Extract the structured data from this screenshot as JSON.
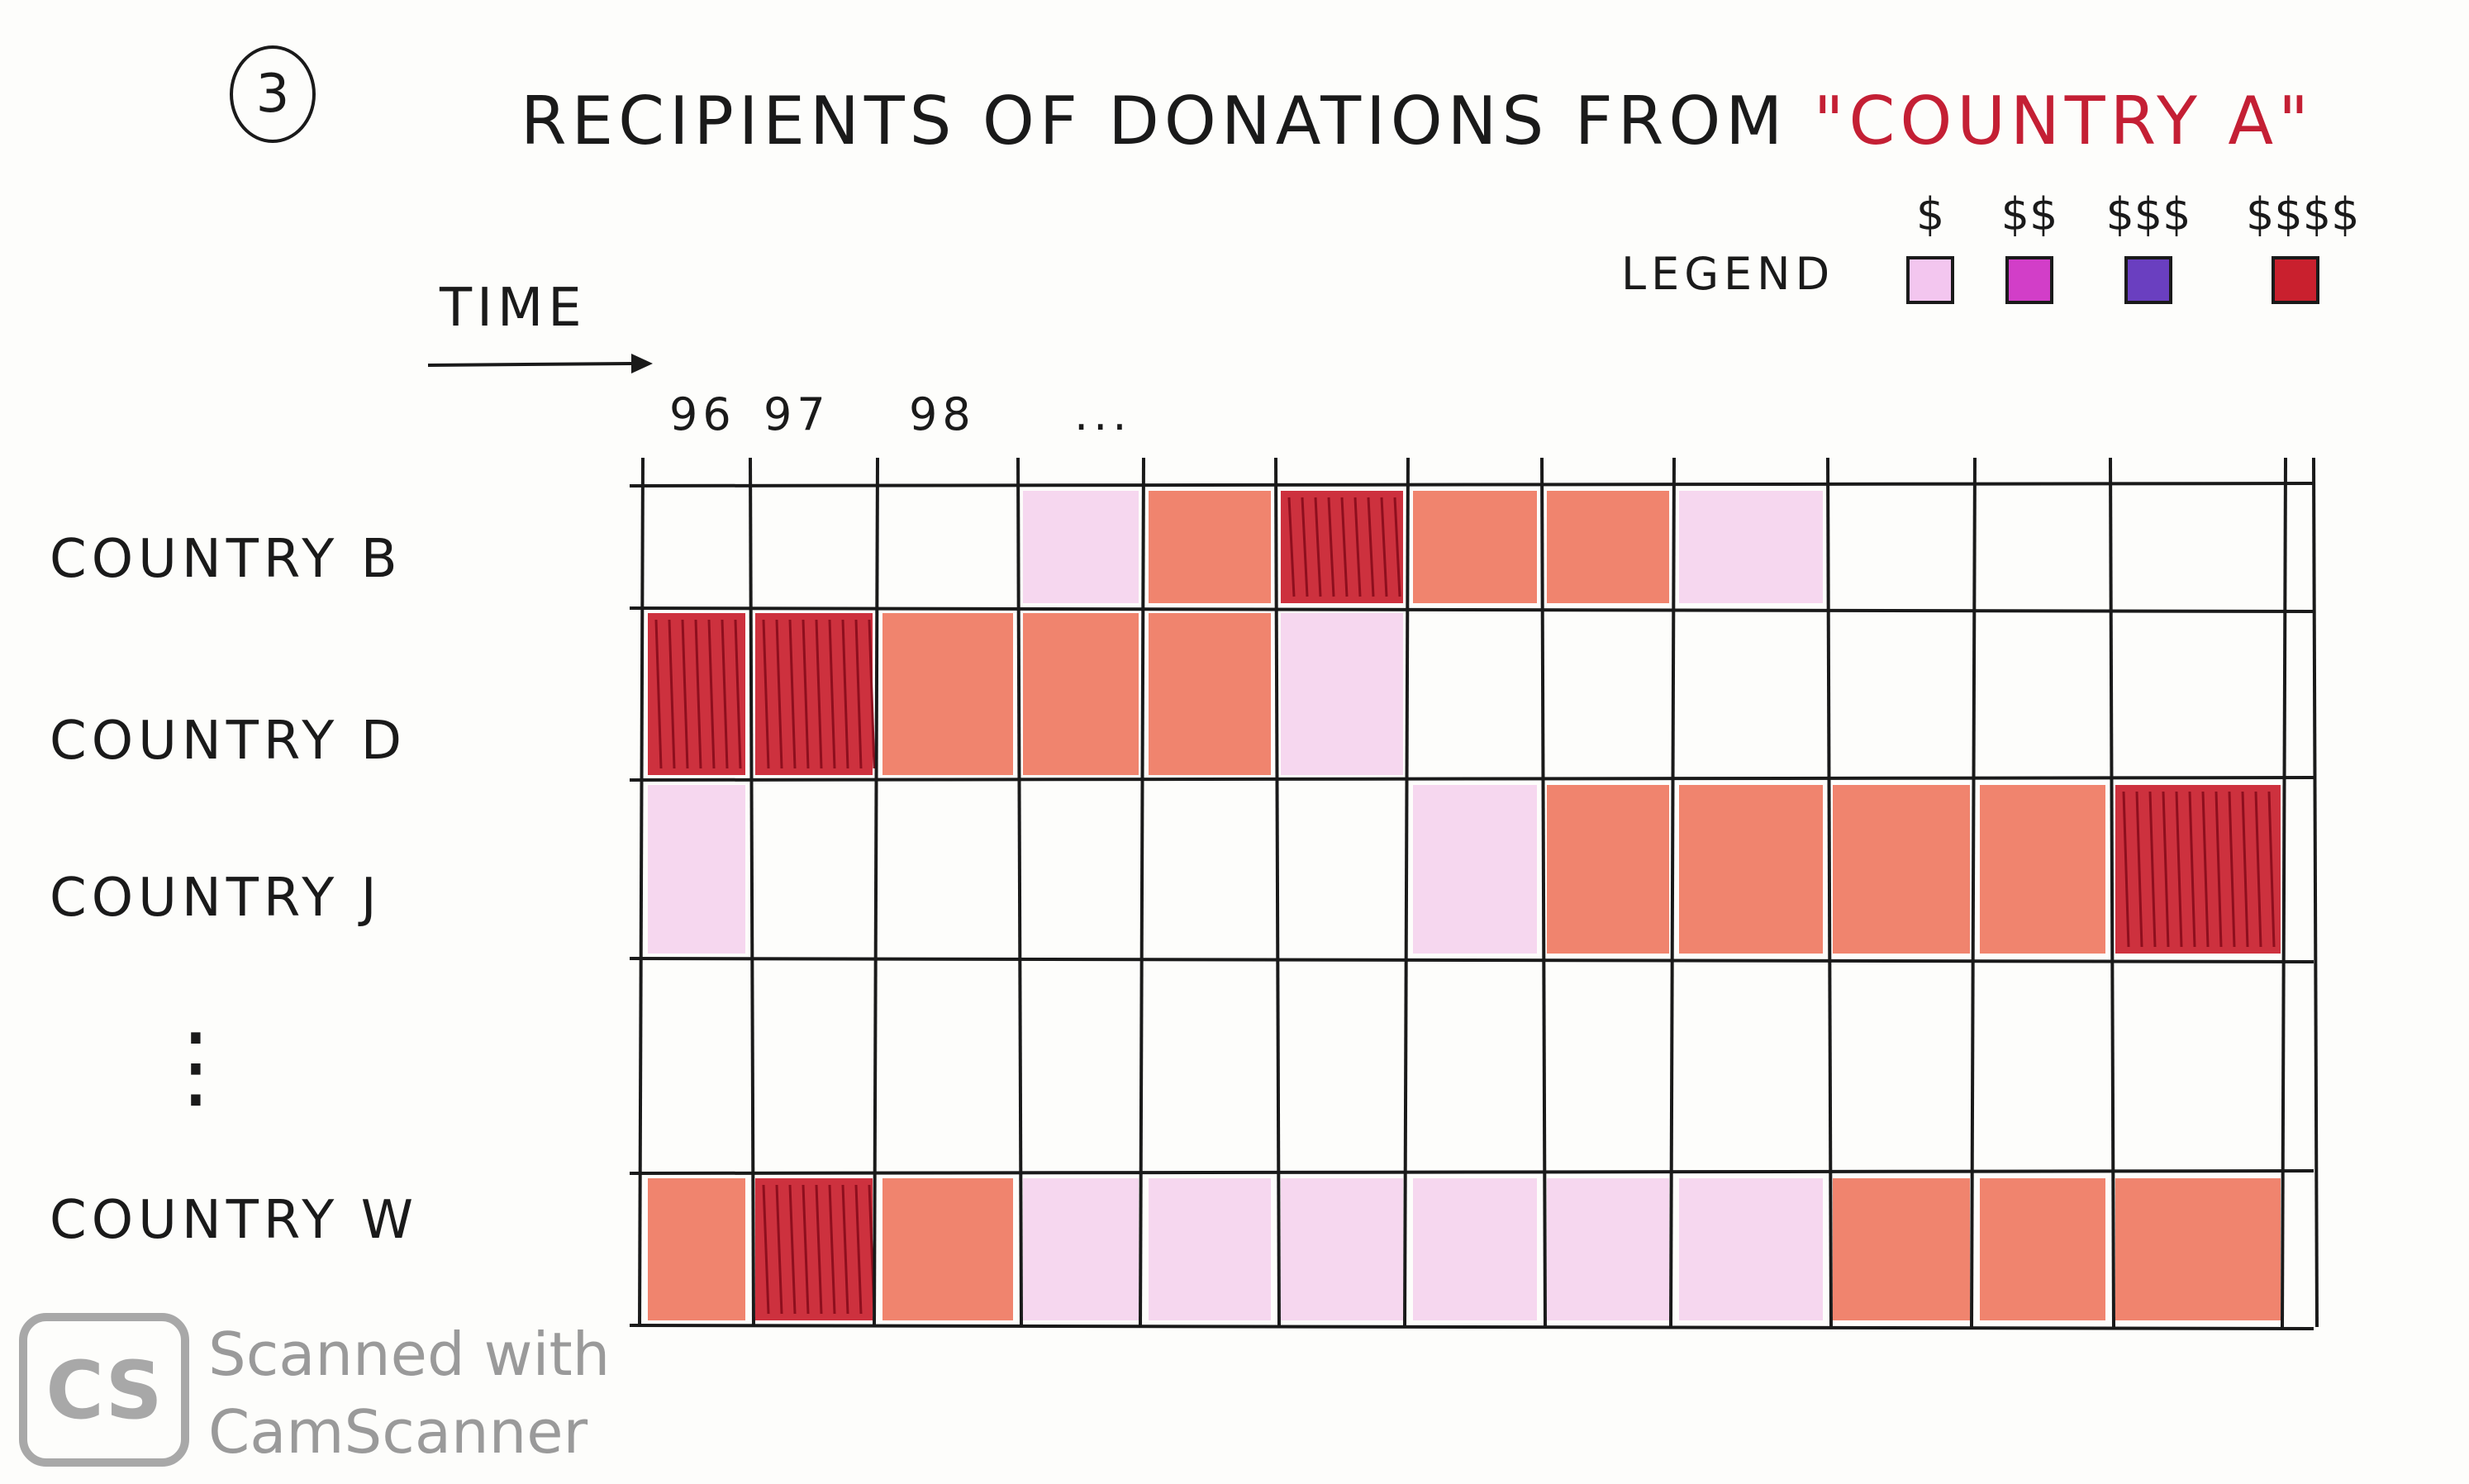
{
  "fig_number": "3",
  "chart_data": {
    "type": "heatmap",
    "title_prefix": "RECIPIENTS OF DONATIONS FROM",
    "title_highlight": "\"COUNTRY A\"",
    "time_label": "TIME",
    "x_tick_labels": [
      "96",
      "97",
      "98",
      "..."
    ],
    "legend_label": "LEGEND",
    "legend": [
      {
        "symbol": "$",
        "color": "#f3c6ef"
      },
      {
        "symbol": "$$",
        "color": "#d23ec8"
      },
      {
        "symbol": "$$$",
        "color": "#6a3fc0"
      },
      {
        "symbol": "$$$$",
        "color": "#c9202e"
      }
    ],
    "level_colors": [
      "#ffffff",
      "#f4cdec",
      "#ef7a62",
      "#c9202e"
    ],
    "rows": [
      {
        "label": "COUNTRY B",
        "levels": [
          0,
          0,
          0,
          1,
          2,
          3,
          2,
          2,
          1,
          0,
          0,
          0,
          0
        ]
      },
      {
        "label": "COUNTRY D",
        "levels": [
          3,
          3,
          2,
          2,
          2,
          1,
          0,
          0,
          0,
          0,
          0,
          0,
          0
        ]
      },
      {
        "label": "COUNTRY J",
        "levels": [
          1,
          0,
          0,
          0,
          0,
          0,
          1,
          2,
          2,
          2,
          2,
          3,
          0
        ]
      },
      {
        "label": "",
        "levels": [
          0,
          0,
          0,
          0,
          0,
          0,
          0,
          0,
          0,
          0,
          0,
          0,
          0
        ]
      },
      {
        "label": "COUNTRY W",
        "levels": [
          2,
          3,
          2,
          1,
          1,
          1,
          1,
          1,
          1,
          2,
          2,
          2,
          0
        ]
      }
    ],
    "ellipsis": "⋮"
  },
  "watermark": {
    "badge": "CS",
    "line1": "Scanned with",
    "line2": "CamScanner"
  }
}
